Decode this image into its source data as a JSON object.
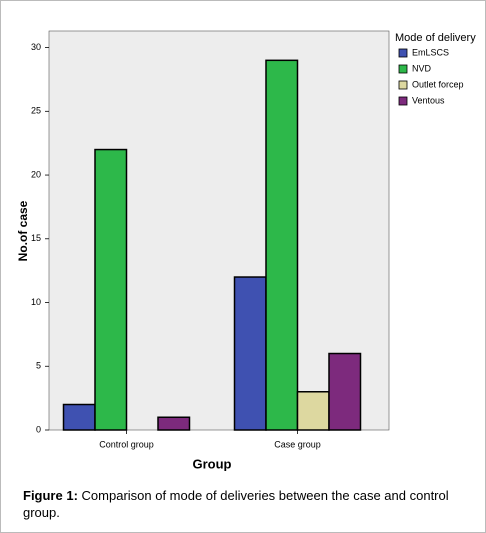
{
  "chart_data": {
    "type": "bar",
    "x_label": "Group",
    "y_label": "No.of case",
    "legend_title": "Mode of delivery",
    "categories": [
      "Control group",
      "Case group"
    ],
    "series": [
      {
        "name": "EmLSCS",
        "color": "#3f51b1",
        "values": [
          2,
          12
        ]
      },
      {
        "name": "NVD",
        "color": "#2db84a",
        "values": [
          22,
          29
        ]
      },
      {
        "name": "Outlet forcep",
        "color": "#ddd8a0",
        "values": [
          0,
          3
        ]
      },
      {
        "name": "Ventous",
        "color": "#7d2a7d",
        "values": [
          1,
          6
        ]
      }
    ],
    "ylim": [
      0,
      31.3
    ],
    "yticks": [
      0,
      5,
      10,
      15,
      20,
      25,
      30
    ]
  },
  "caption": {
    "label": "Figure 1:",
    "text": "Comparison of mode of deliveries between the case and control group."
  }
}
